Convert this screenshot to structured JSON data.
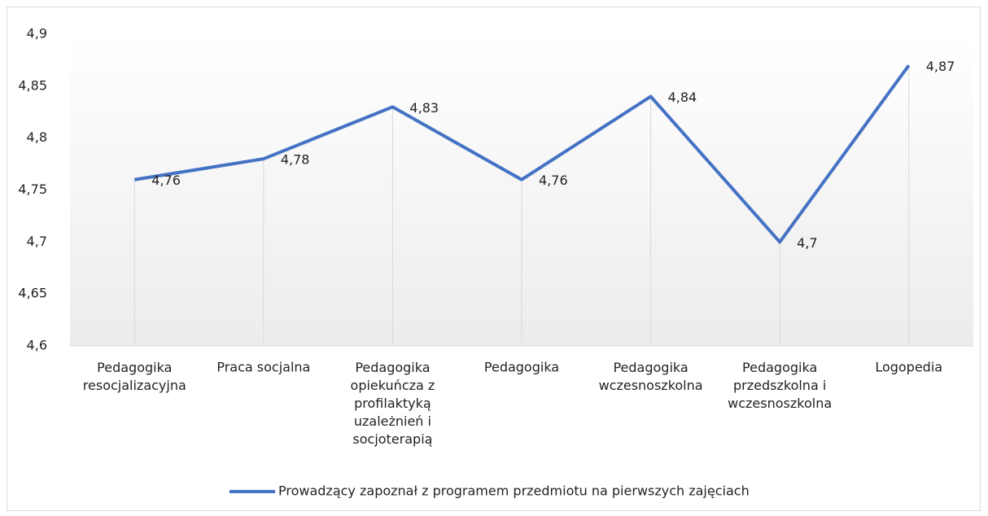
{
  "chart_data": {
    "type": "line",
    "categories": [
      "Pedagogika\nresocjalizacyjna",
      "Praca socjalna",
      "Pedagogika\nopiekuńcza z\nprofilaktyką\nuzależnień i\nsocjoterapią",
      "Pedagogika",
      "Pedagogika\nwczesnoszkolna",
      "Pedagogika\nprzedszkolna i\nwczesnoszkolna",
      "Logopedia"
    ],
    "series": [
      {
        "name": "Prowadzący zapoznał z programem przedmiotu na pierwszych zajęciach",
        "color": "#4472c4",
        "values": [
          4.76,
          4.78,
          4.83,
          4.76,
          4.84,
          4.7,
          4.87
        ],
        "value_labels": [
          "4,76",
          "4,78",
          "4,83",
          "4,76",
          "4,84",
          "4,7",
          "4,87"
        ]
      }
    ],
    "ylim": [
      4.6,
      4.9
    ],
    "yticks": [
      {
        "value": 4.6,
        "label": "4,6"
      },
      {
        "value": 4.65,
        "label": "4,65"
      },
      {
        "value": 4.7,
        "label": "4,7"
      },
      {
        "value": 4.75,
        "label": "4,75"
      },
      {
        "value": 4.8,
        "label": "4,8"
      },
      {
        "value": 4.85,
        "label": "4,85"
      },
      {
        "value": 4.9,
        "label": "4,9"
      }
    ],
    "legend": "bottom"
  }
}
